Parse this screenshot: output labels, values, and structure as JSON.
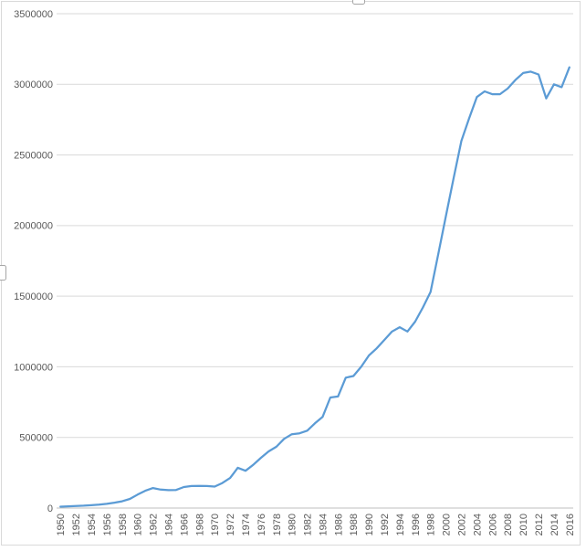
{
  "chart": {
    "background": "#ffffff",
    "border_color": "#d9d9d9",
    "gridline_color": "#d9d9d9",
    "axis_line_color": "#bfbfbf",
    "tick_label_color": "#595959",
    "line_color": "#5b9bd5",
    "handle_fill": "#ffffff",
    "handle_stroke": "#a6a6a6",
    "selection_handles": [
      "top-center",
      "left-middle"
    ]
  },
  "chart_data": {
    "type": "line",
    "title": "",
    "xlabel": "",
    "ylabel": "",
    "legend": "none",
    "grid": "horizontal-only",
    "ylim": [
      0,
      3500000
    ],
    "ytick_interval": 500000,
    "ytick_labels": [
      "3500000",
      "3000000",
      "2500000",
      "2000000",
      "1500000",
      "1000000",
      "500000",
      "0"
    ],
    "xtick_labels": [
      "1950",
      "1952",
      "1954",
      "1956",
      "1958",
      "1960",
      "1962",
      "1964",
      "1966",
      "1968",
      "1970",
      "1972",
      "1974",
      "1976",
      "1978",
      "1980",
      "1982",
      "1984",
      "1986",
      "1988",
      "1990",
      "1992",
      "1994",
      "1996",
      "1998",
      "2000",
      "2002",
      "2004",
      "2006",
      "2008",
      "2010",
      "2012",
      "2014",
      "2016"
    ],
    "xtick_rotation_degrees": 90,
    "x": [
      1950,
      1951,
      1952,
      1953,
      1954,
      1955,
      1956,
      1957,
      1958,
      1959,
      1960,
      1961,
      1962,
      1963,
      1964,
      1965,
      1966,
      1967,
      1968,
      1969,
      1970,
      1971,
      1972,
      1973,
      1974,
      1975,
      1976,
      1977,
      1978,
      1979,
      1980,
      1981,
      1982,
      1983,
      1984,
      1985,
      1986,
      1987,
      1988,
      1989,
      1990,
      1991,
      1992,
      1993,
      1994,
      1995,
      1996,
      1997,
      1998,
      1999,
      2000,
      2001,
      2002,
      2003,
      2004,
      2005,
      2006,
      2007,
      2008,
      2009,
      2010,
      2011,
      2012,
      2013,
      2014,
      2015,
      2016
    ],
    "series": [
      {
        "name": "",
        "color": "#5b9bd5",
        "values": [
          10000,
          12000,
          15000,
          17000,
          20000,
          24000,
          30000,
          38000,
          48000,
          65000,
          95000,
          122000,
          142000,
          131000,
          127000,
          128000,
          149000,
          156000,
          157000,
          156000,
          152000,
          177000,
          213000,
          285000,
          264000,
          306000,
          356000,
          401000,
          434000,
          490000,
          523000,
          529000,
          548000,
          600000,
          645000,
          783000,
          790000,
          923000,
          935000,
          1000000,
          1080000,
          1130000,
          1190000,
          1250000,
          1280000,
          1250000,
          1320000,
          1420000,
          1530000,
          1800000,
          2070000,
          2340000,
          2600000,
          2760000,
          2910000,
          2950000,
          2930000,
          2930000,
          2970000,
          3030000,
          3080000,
          3090000,
          3070000,
          2900000,
          3000000,
          2980000,
          3120000
        ]
      }
    ]
  }
}
